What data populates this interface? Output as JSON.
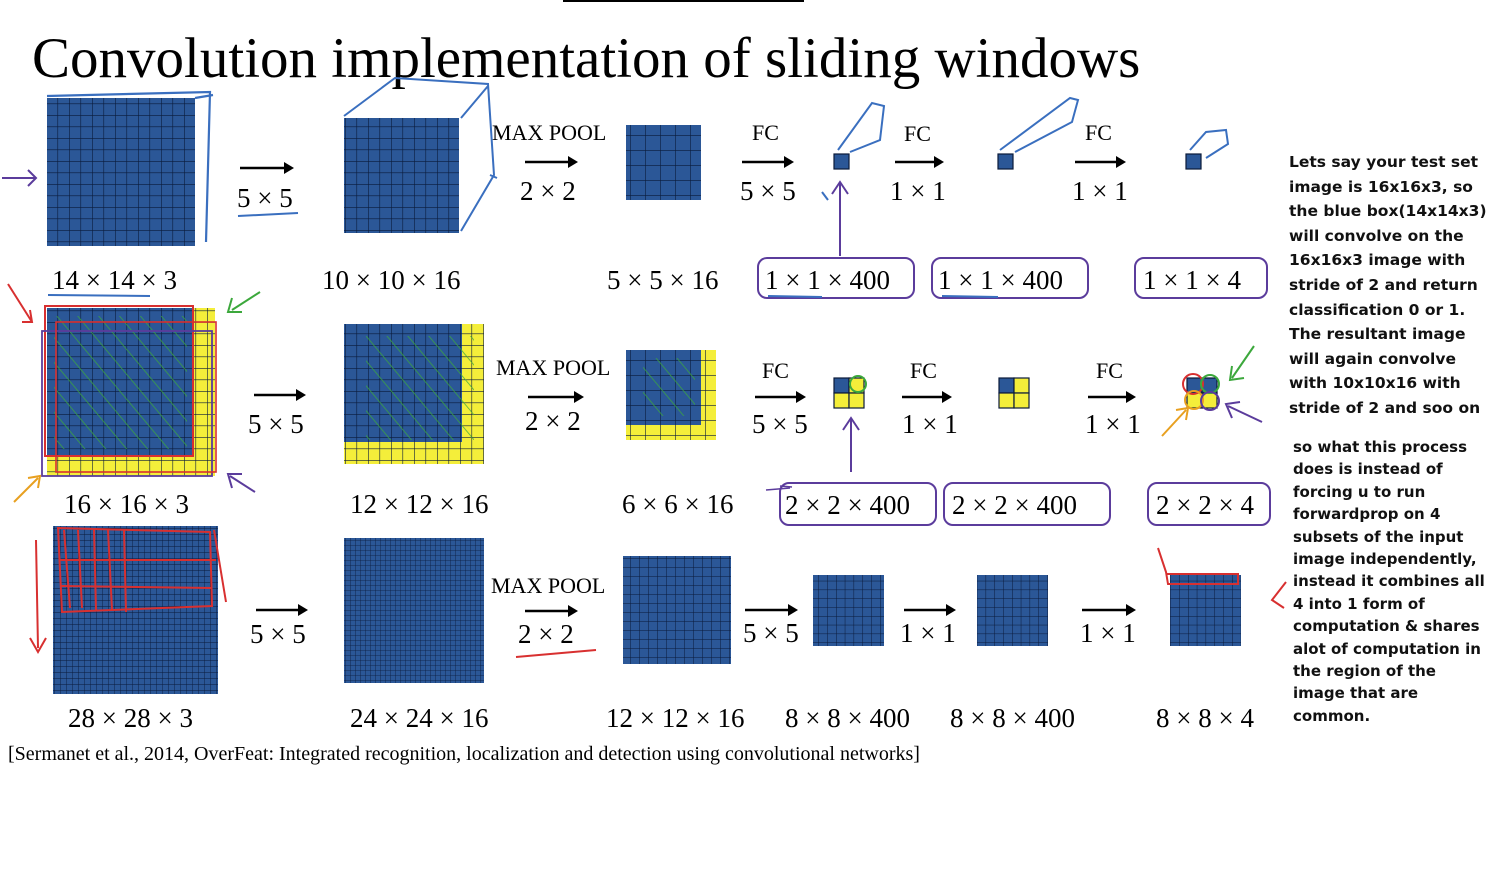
{
  "title": "Convolution implementation of sliding windows",
  "citation": "[Sermanet et al., 2014, OverFeat: Integrated recognition, localization and detection using convolutional networks]",
  "rows": [
    {
      "input_dim": "14 × 14 × 3",
      "conv_op": "5 × 5",
      "conv_dim": "10 × 10 × 16",
      "pool_label": "MAX POOL",
      "pool_op": "2 × 2",
      "pool_dim": "5 × 5 × 16",
      "fc1_label": "FC",
      "fc1_op": "5 × 5",
      "fc1_dim": "1 × 1 × 400",
      "fc2_label": "FC",
      "fc2_op": "1 × 1",
      "fc2_dim": "1 × 1 × 400",
      "fc3_label": "FC",
      "fc3_op": "1 × 1",
      "out_dim": "1 × 1 × 4"
    },
    {
      "input_dim": "16 × 16 × 3",
      "conv_op": "5 × 5",
      "conv_dim": "12 × 12 × 16",
      "pool_label": "MAX POOL",
      "pool_op": "2 × 2",
      "pool_dim": "6 × 6 × 16",
      "fc1_label": "FC",
      "fc1_op": "5 × 5",
      "fc1_dim": "2 × 2 × 400",
      "fc2_label": "FC",
      "fc2_op": "1 × 1",
      "fc2_dim": "2 × 2 × 400",
      "fc3_label": "FC",
      "fc3_op": "1 × 1",
      "out_dim": "2 × 2 × 4"
    },
    {
      "input_dim": "28 × 28 × 3",
      "conv_op": "5 × 5",
      "conv_dim": "24 × 24 × 16",
      "pool_label": "MAX POOL",
      "pool_op": "2 × 2",
      "pool_dim": "12 × 12 × 16",
      "fc1_op": "5 × 5",
      "fc1_dim": "8 × 8 × 400",
      "fc2_op": "1 × 1",
      "fc2_dim": "8 × 8 × 400",
      "fc3_op": "1 × 1",
      "out_dim": "8 × 8 × 4"
    }
  ],
  "note1": [
    "Lets say your test set",
    "image is 16x16x3, so",
    "the blue box(14x14x3)",
    "will convolve on the",
    "16x16x3 image with",
    "stride of 2 and return",
    "classification 0 or 1.",
    "The resultant image",
    "will again convolve",
    "with 10x10x16 with",
    "stride of 2 and soo on"
  ],
  "note2": [
    "so what this process",
    "does is instead of",
    "forcing u to run",
    "forwardprop on 4",
    "subsets of the input",
    "image independently,",
    "instead it combines all",
    "4 into 1 form of",
    "computation & shares",
    "alot of computation in",
    "the region of the",
    "image that are",
    "common."
  ],
  "colors": {
    "grid_blue": "#2b5797",
    "grid_line": "#0a1a3a",
    "highlight_yellow": "#f4ee3a",
    "ink_blue": "#3a6fbf",
    "ink_purple": "#5b3c9c",
    "ink_green": "#3ca83c",
    "ink_red": "#d83030",
    "ink_orange": "#e8a020"
  }
}
